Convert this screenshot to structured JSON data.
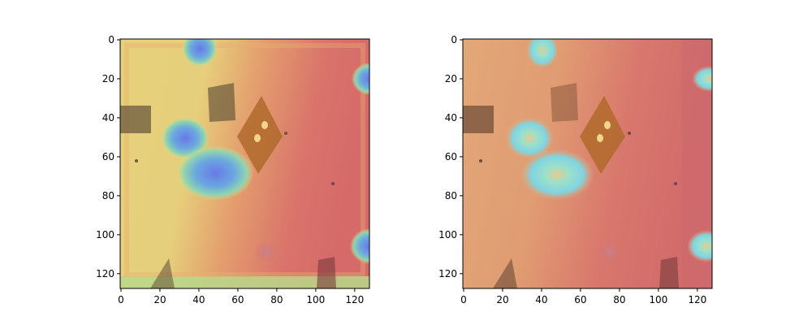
{
  "figure": {
    "panels": [
      {
        "name": "left-heatmap-panel",
        "xlim": [
          0,
          128
        ],
        "ylim": [
          128,
          0
        ],
        "x_ticks": [
          0,
          20,
          40,
          60,
          80,
          100,
          120
        ],
        "y_ticks": [
          0,
          20,
          40,
          60,
          80,
          100,
          120
        ],
        "colormap": "jet-overlay-warm"
      },
      {
        "name": "right-heatmap-panel",
        "xlim": [
          0,
          128
        ],
        "ylim": [
          128,
          0
        ],
        "x_ticks": [
          0,
          20,
          40,
          60,
          80,
          100,
          120
        ],
        "y_ticks": [
          0,
          20,
          40,
          60,
          80,
          100,
          120
        ],
        "colormap": "jet-overlay-red"
      }
    ],
    "colors": {
      "background": "#ffffff",
      "axis": "#000000"
    }
  }
}
